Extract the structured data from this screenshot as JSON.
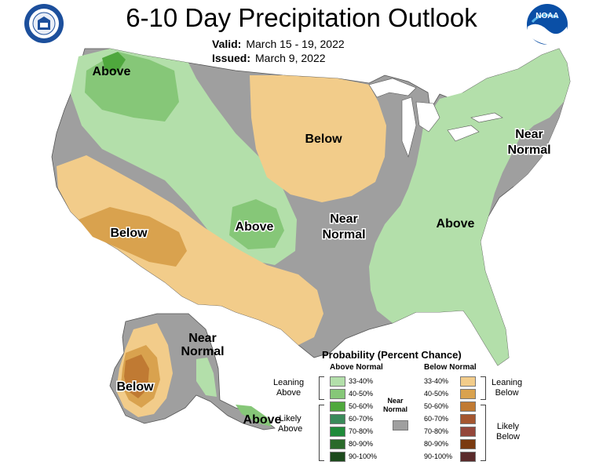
{
  "title": "6-10 Day Precipitation Outlook",
  "valid_label": "Valid:",
  "valid_value": "March 15 - 19, 2022",
  "issued_label": "Issued:",
  "issued_value": "March 9, 2022",
  "logos": {
    "left": "doc-seal-icon",
    "right": "noaa-logo-icon",
    "noaa_text": "NOAA"
  },
  "colors": {
    "near_normal": "#9f9f9f",
    "above_33_40": "#b3dfaa",
    "above_40_50": "#86c778",
    "above_50_60": "#4fa83d",
    "below_33_40": "#f2cc8a",
    "below_40_50": "#d9a24e",
    "below_50_60": "#c07a33"
  },
  "map_labels": {
    "above_nw": "Above",
    "below_north": "Below",
    "near_normal_ne_1": "Near",
    "near_normal_ne_2": "Normal",
    "below_sw": "Below",
    "above_central": "Above",
    "near_normal_c_1": "Near",
    "near_normal_c_2": "Normal",
    "above_east": "Above",
    "ak_near_1": "Near",
    "ak_near_2": "Normal",
    "ak_below": "Below",
    "ak_above": "Above"
  },
  "legend": {
    "title": "Probability (Percent Chance)",
    "above_header": "Above Normal",
    "below_header": "Below Normal",
    "near_label_1": "Near",
    "near_label_2": "Normal",
    "leaning_above_1": "Leaning",
    "leaning_above_2": "Above",
    "likely_above_1": "Likely",
    "likely_above_2": "Above",
    "leaning_below_1": "Leaning",
    "leaning_below_2": "Below",
    "likely_below_1": "Likely",
    "likely_below_2": "Below",
    "above_bins": [
      {
        "label": "33-40%",
        "color": "#b3dfaa"
      },
      {
        "label": "40-50%",
        "color": "#86c778"
      },
      {
        "label": "50-60%",
        "color": "#4fa83d"
      },
      {
        "label": "60-70%",
        "color": "#3a8a5a"
      },
      {
        "label": "70-80%",
        "color": "#1f8a3a"
      },
      {
        "label": "80-90%",
        "color": "#2a6a2a"
      },
      {
        "label": "90-100%",
        "color": "#1c4a1c"
      }
    ],
    "below_bins": [
      {
        "label": "33-40%",
        "color": "#f2cc8a"
      },
      {
        "label": "40-50%",
        "color": "#d9a24e"
      },
      {
        "label": "50-60%",
        "color": "#c07a33"
      },
      {
        "label": "60-70%",
        "color": "#a4562f"
      },
      {
        "label": "70-80%",
        "color": "#94463a"
      },
      {
        "label": "80-90%",
        "color": "#7a3a10"
      },
      {
        "label": "90-100%",
        "color": "#5a2a2a"
      }
    ],
    "near_color": "#9f9f9f"
  }
}
